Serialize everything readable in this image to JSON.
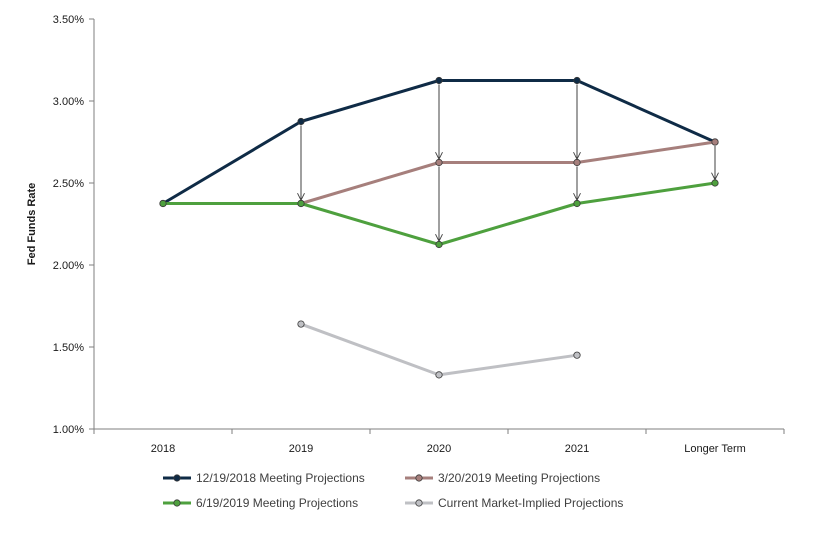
{
  "chart_data": {
    "type": "line",
    "categories": [
      "2018",
      "2019",
      "2020",
      "2021",
      "Longer Term"
    ],
    "ylabel": "Fed Funds Rate",
    "xlabel": "",
    "title": "",
    "ylim": [
      1.0,
      3.5
    ],
    "y_ticks": [
      "1.00%",
      "1.50%",
      "2.00%",
      "2.50%",
      "3.00%",
      "3.50%"
    ],
    "y_tick_values": [
      1.0,
      1.5,
      2.0,
      2.5,
      3.0,
      3.5
    ],
    "grid": false,
    "legend_position": "bottom",
    "series": [
      {
        "name": "12/19/2018 Meeting Projections",
        "color": "#0f2b46",
        "values": [
          2.375,
          2.875,
          3.125,
          3.125,
          2.75
        ]
      },
      {
        "name": "3/20/2019 Meeting Projections",
        "color": "#a67f7c",
        "values": [
          null,
          2.375,
          2.625,
          2.625,
          2.75
        ]
      },
      {
        "name": "6/19/2019 Meeting Projections",
        "color": "#4ea03e",
        "values": [
          2.375,
          2.375,
          2.125,
          2.375,
          2.5
        ]
      },
      {
        "name": "Current Market-Implied Projections",
        "color": "#bfc0c4",
        "values": [
          null,
          1.64,
          1.33,
          1.45,
          null
        ]
      }
    ],
    "arrows": [
      {
        "category": "2019",
        "from": 2.875,
        "to": 2.375
      },
      {
        "category": "2020",
        "from": 3.125,
        "to": 2.625
      },
      {
        "category": "2020",
        "from": 2.625,
        "to": 2.125
      },
      {
        "category": "2021",
        "from": 3.125,
        "to": 2.625
      },
      {
        "category": "2021",
        "from": 2.625,
        "to": 2.375
      },
      {
        "category": "Longer Term",
        "from": 2.75,
        "to": 2.5
      }
    ]
  }
}
